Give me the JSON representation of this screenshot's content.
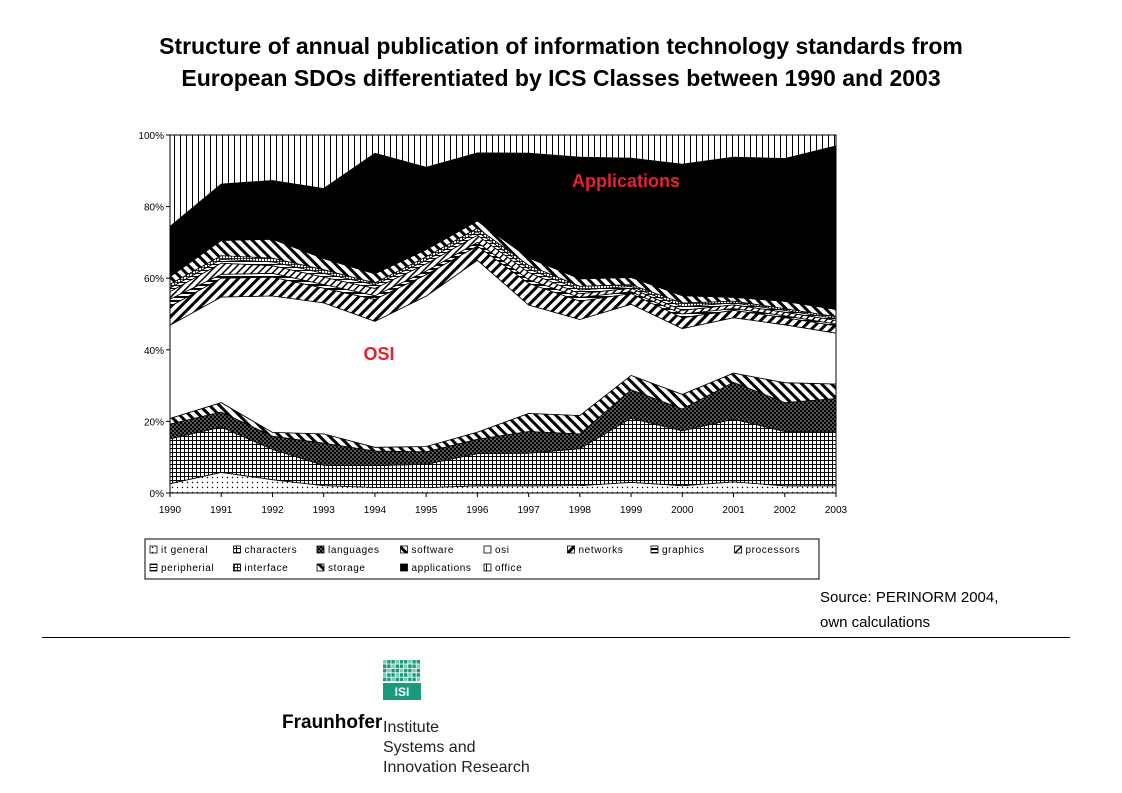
{
  "title_lines": [
    "Structure of annual publication of information technology standards from",
    "European SDOs differentiated by ICS Classes between 1990 and 2003"
  ],
  "source_lines": [
    "Source: PERINORM 2004,",
    "own calculations"
  ],
  "logo": {
    "name": "Fraunhofer",
    "badge": "ISI",
    "institute_lines": [
      "Institute",
      "Systems and",
      "Innovation Research"
    ],
    "brand_color": "#179c7d"
  },
  "chart_data": {
    "type": "area",
    "stacked": true,
    "normalized": true,
    "x": [
      "1990",
      "1991",
      "1992",
      "1993",
      "1994",
      "1995",
      "1996",
      "1997",
      "1998",
      "1999",
      "2000",
      "2001",
      "2002",
      "2003"
    ],
    "yticks": [
      "0%",
      "20%",
      "40%",
      "60%",
      "80%",
      "100%"
    ],
    "ylim": [
      0,
      100
    ],
    "legend_position": "bottom",
    "annotations": [
      {
        "text": "Applications",
        "color": "#e8202a"
      },
      {
        "text": "OSI",
        "color": "#e8202a"
      }
    ],
    "series": [
      {
        "name": "it general",
        "color": "#ffffff",
        "pattern": "dots",
        "values": [
          2.5,
          5.5,
          3.5,
          2,
          1.5,
          1.5,
          2,
          2,
          2,
          3,
          2,
          3,
          2,
          2
        ]
      },
      {
        "name": "characters",
        "color": "#ffffff",
        "pattern": "grid",
        "values": [
          12,
          12,
          8,
          5.5,
          6,
          6.5,
          9,
          9,
          10,
          18,
          15,
          17,
          15,
          15
        ]
      },
      {
        "name": "languages",
        "color": "#000000",
        "pattern": "checker",
        "values": [
          4,
          4,
          3.5,
          6,
          4,
          3.5,
          4,
          6,
          4,
          8,
          6,
          10,
          8,
          9
        ]
      },
      {
        "name": "software",
        "color": "#ffffff",
        "pattern": "backslash",
        "values": [
          1.5,
          2.5,
          1,
          2.5,
          1,
          1.5,
          2,
          5,
          5,
          4,
          4,
          2.5,
          5.5,
          4
        ]
      },
      {
        "name": "osi",
        "color": "#ffffff",
        "pattern": "none",
        "values": [
          25,
          28,
          36,
          35.5,
          34.5,
          42,
          48,
          30,
          26,
          20,
          18,
          15,
          16,
          14
        ]
      },
      {
        "name": "networks",
        "color": "#ffffff",
        "pattern": "slash",
        "values": [
          5,
          5,
          5,
          4,
          6,
          6,
          4,
          6,
          5,
          3,
          3,
          2,
          2,
          2
        ]
      },
      {
        "name": "graphics",
        "color": "#ffffff",
        "pattern": "hbars",
        "values": [
          2,
          1,
          1,
          1,
          1,
          1,
          1,
          1,
          1,
          0.5,
          1,
          0.5,
          0.5,
          0.5
        ]
      },
      {
        "name": "processors",
        "color": "#ffffff",
        "pattern": "slash2",
        "values": [
          2,
          3,
          2,
          2,
          2,
          2,
          2,
          2,
          1,
          1,
          1,
          1,
          1,
          1
        ]
      },
      {
        "name": "peripherial",
        "color": "#ffffff",
        "pattern": "hlines",
        "values": [
          1,
          1,
          1,
          1,
          1,
          1,
          1,
          1,
          1,
          0.5,
          1,
          0.5,
          0.5,
          0.5
        ]
      },
      {
        "name": "interface",
        "color": "#ffffff",
        "pattern": "finegrid",
        "values": [
          1,
          1,
          1,
          1,
          0.5,
          1,
          1,
          1,
          1,
          0.5,
          1,
          0.5,
          0.5,
          0.5
        ]
      },
      {
        "name": "storage",
        "color": "#ffffff",
        "pattern": "backslash",
        "values": [
          2,
          4,
          5,
          3,
          2.5,
          2,
          2,
          2,
          2,
          2,
          2,
          1,
          2,
          2
        ]
      },
      {
        "name": "applications",
        "color": "#000000",
        "pattern": "solid",
        "values": [
          13.5,
          15,
          15.5,
          19,
          33,
          23,
          19,
          29,
          33,
          33.5,
          36,
          38,
          39.5,
          45
        ]
      },
      {
        "name": "office",
        "color": "#ffffff",
        "pattern": "vlines",
        "values": [
          24.5,
          13,
          12,
          14.5,
          5,
          9,
          5,
          5,
          6,
          6.5,
          8,
          6,
          6.5,
          3
        ]
      }
    ]
  }
}
